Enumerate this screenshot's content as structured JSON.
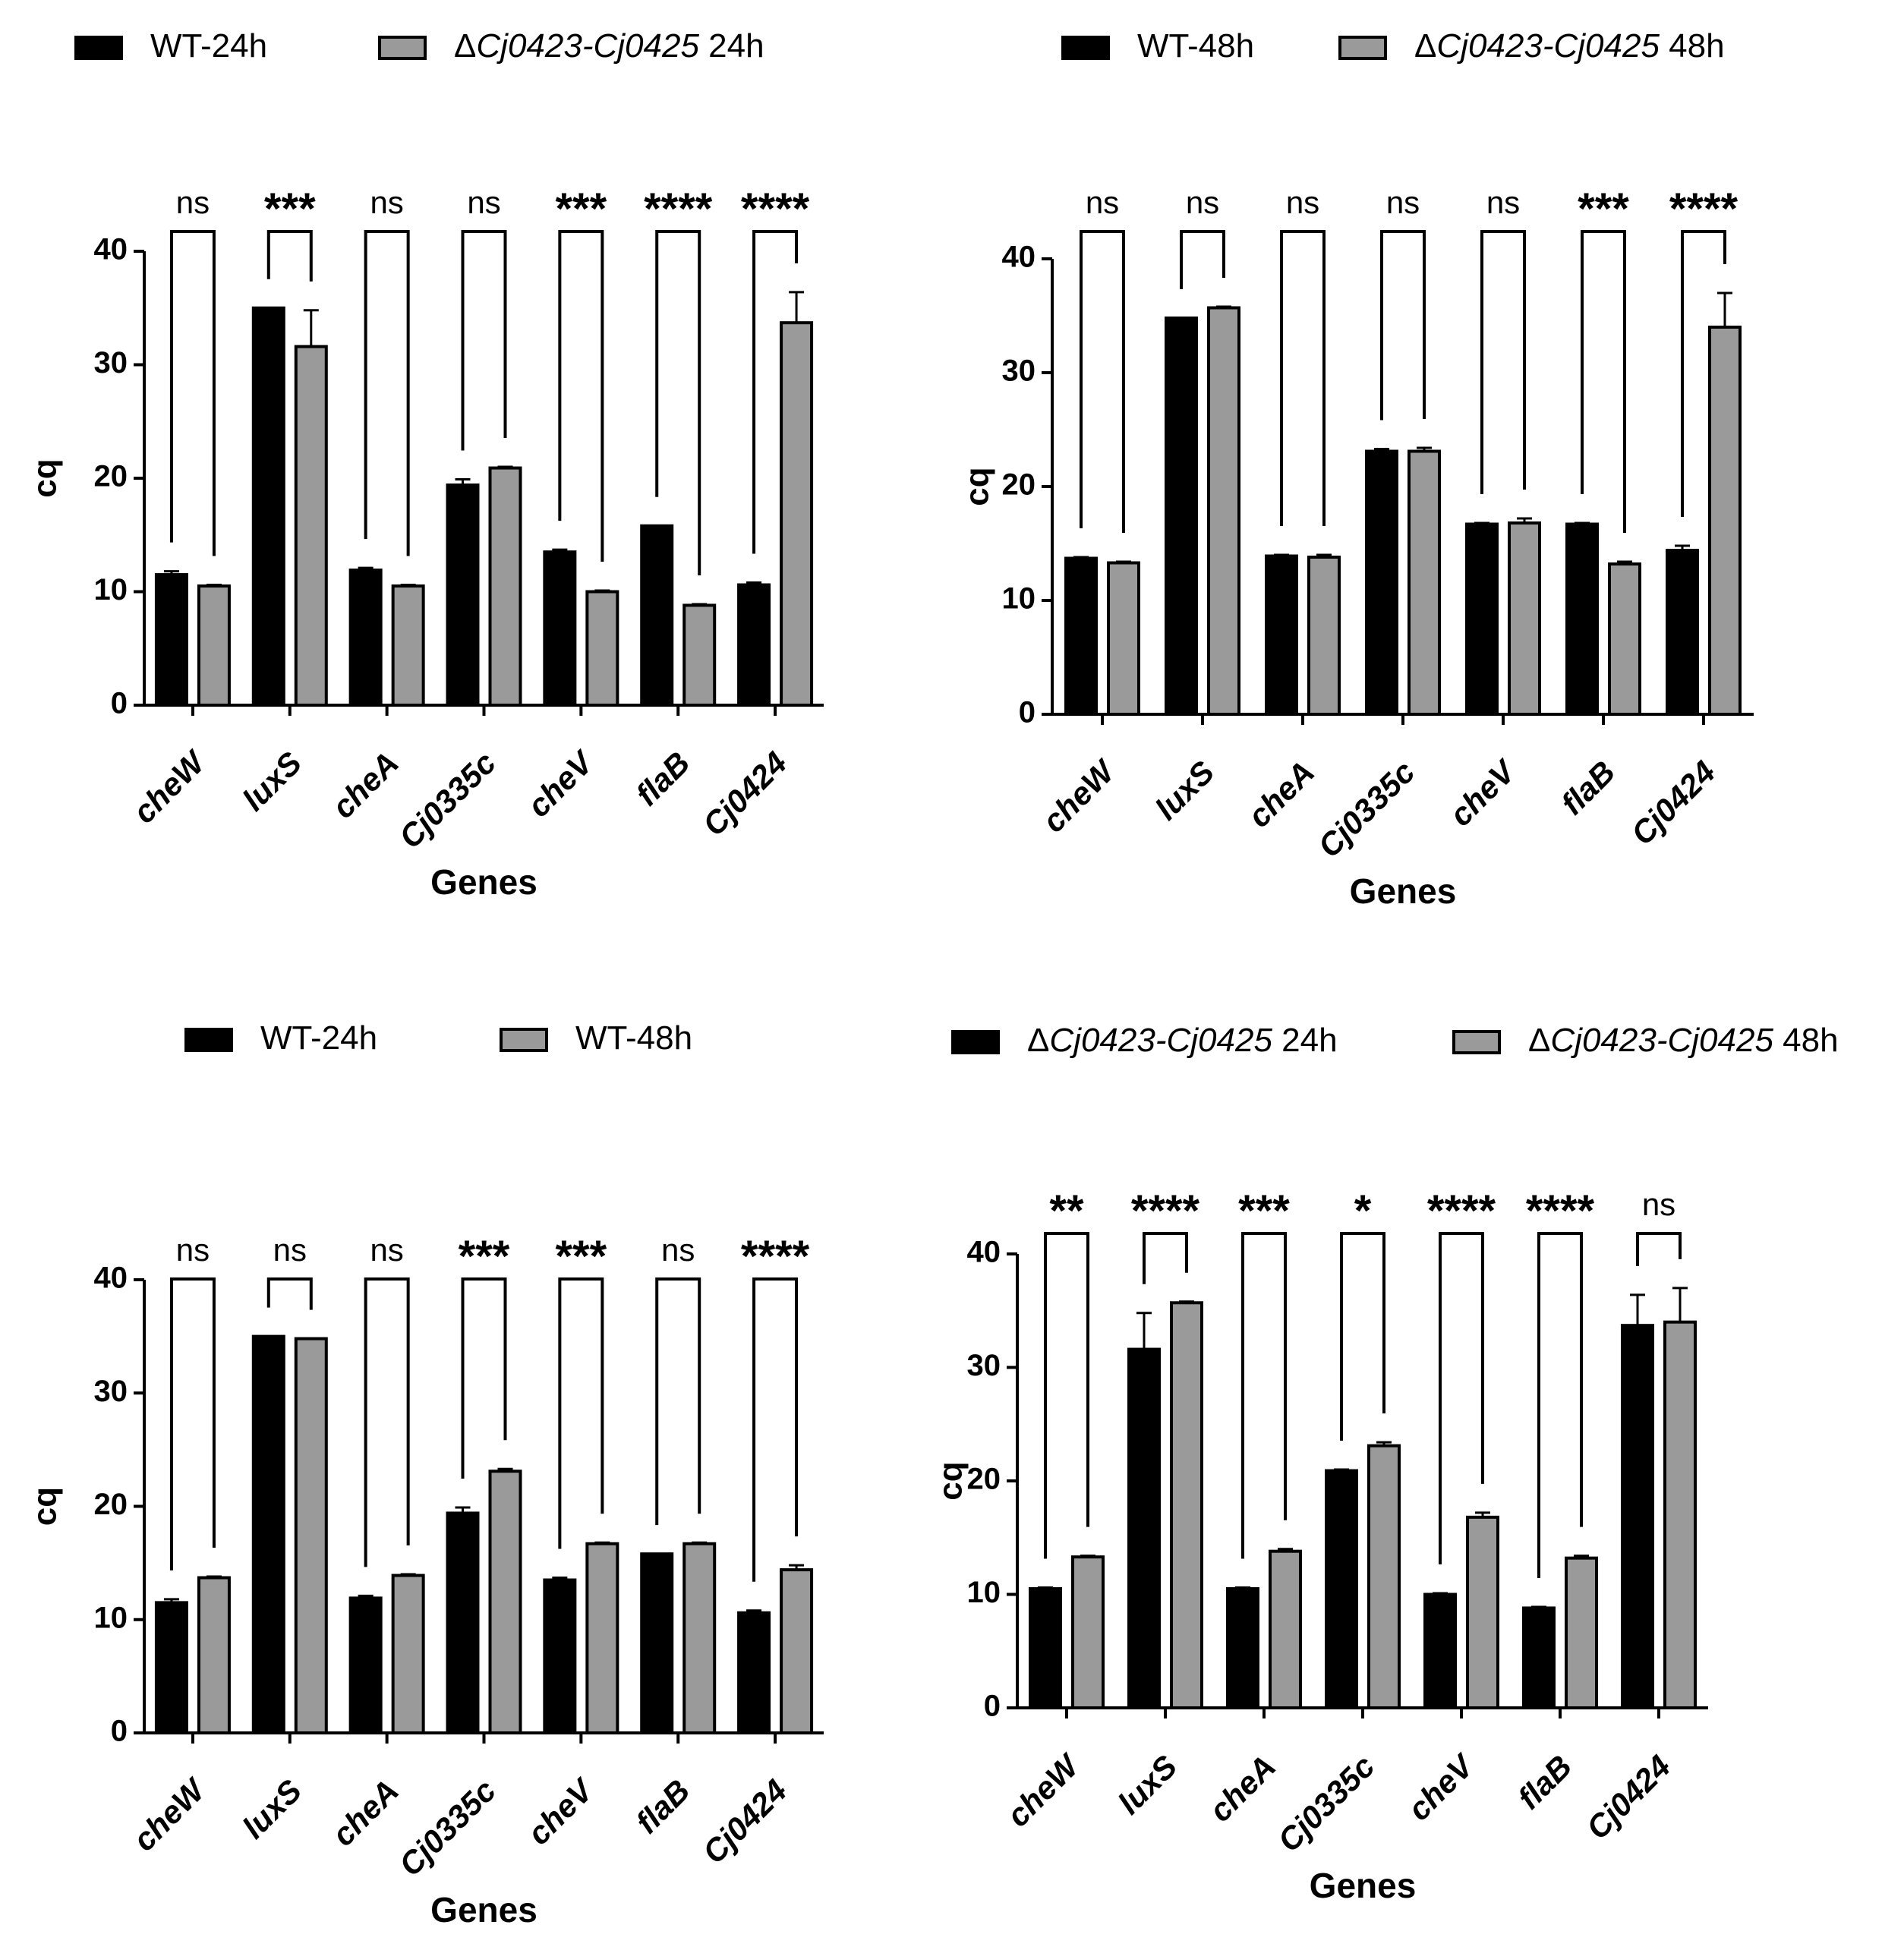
{
  "colors": {
    "wt_fill": "#000000",
    "mutant_fill": "#9a9a9a",
    "stroke": "#000000"
  },
  "chart_data": [
    {
      "type": "bar",
      "panel": "top-left",
      "legend": [
        {
          "name": "WT-24h",
          "parts": [
            {
              "t": "WT-24h",
              "italic": false
            }
          ]
        },
        {
          "name": "ΔCj0423-Cj0425 24h",
          "parts": [
            {
              "t": "Δ",
              "italic": false
            },
            {
              "t": "Cj0423-Cj0425",
              "italic": true
            },
            {
              "t": " 24h",
              "italic": false
            }
          ]
        }
      ],
      "legend_position": "top",
      "categories": [
        "cheW",
        "luxS",
        "cheA",
        "Cj0335c",
        "cheV",
        "flaB",
        "Cj0424"
      ],
      "series": [
        {
          "name": "WT-24h",
          "values": [
            11.5,
            35.0,
            11.9,
            19.4,
            13.5,
            15.8,
            10.6
          ],
          "errors": [
            0.3,
            0.0,
            0.2,
            0.5,
            0.2,
            0.0,
            0.2
          ]
        },
        {
          "name": "ΔCj0423-Cj0425 24h",
          "values": [
            10.5,
            31.6,
            10.5,
            20.9,
            10.0,
            8.8,
            33.7
          ],
          "errors": [
            0.1,
            3.2,
            0.1,
            0.1,
            0.1,
            0.1,
            2.7
          ]
        }
      ],
      "significance": [
        "ns",
        "***",
        "ns",
        "ns",
        "***",
        "****",
        "****"
      ],
      "xlabel": "Genes",
      "ylabel": "cq",
      "ylim": [
        0,
        40
      ],
      "yticks": [
        0,
        10,
        20,
        30,
        40
      ],
      "grid": false
    },
    {
      "type": "bar",
      "panel": "top-right",
      "legend": [
        {
          "name": "WT-48h",
          "parts": [
            {
              "t": "WT-48h",
              "italic": false
            }
          ]
        },
        {
          "name": "ΔCj0423-Cj0425 48h",
          "parts": [
            {
              "t": "Δ",
              "italic": false
            },
            {
              "t": "Cj0423-Cj0425",
              "italic": true
            },
            {
              "t": " 48h",
              "italic": false
            }
          ]
        }
      ],
      "legend_position": "top",
      "categories": [
        "cheW",
        "luxS",
        "cheA",
        "Cj0335c",
        "cheV",
        "flaB",
        "Cj0424"
      ],
      "series": [
        {
          "name": "WT-48h",
          "values": [
            13.7,
            34.8,
            13.9,
            23.1,
            16.7,
            16.7,
            14.4
          ],
          "errors": [
            0.1,
            0.0,
            0.1,
            0.2,
            0.1,
            0.1,
            0.4
          ]
        },
        {
          "name": "ΔCj0423-Cj0425 48h",
          "values": [
            13.3,
            35.7,
            13.8,
            23.1,
            16.8,
            13.2,
            34.0
          ],
          "errors": [
            0.1,
            0.1,
            0.2,
            0.3,
            0.4,
            0.2,
            3.0
          ]
        }
      ],
      "significance": [
        "ns",
        "ns",
        "ns",
        "ns",
        "ns",
        "***",
        "****"
      ],
      "xlabel": "Genes",
      "ylabel": "cq",
      "ylim": [
        0,
        40
      ],
      "yticks": [
        0,
        10,
        20,
        30,
        40
      ],
      "grid": false
    },
    {
      "type": "bar",
      "panel": "bottom-left",
      "legend": [
        {
          "name": "WT-24h",
          "parts": [
            {
              "t": "WT-24h",
              "italic": false
            }
          ]
        },
        {
          "name": "WT-48h",
          "parts": [
            {
              "t": "WT-48h",
              "italic": false
            }
          ]
        }
      ],
      "legend_position": "top",
      "categories": [
        "cheW",
        "luxS",
        "cheA",
        "Cj0335c",
        "cheV",
        "flaB",
        "Cj0424"
      ],
      "series": [
        {
          "name": "WT-24h",
          "values": [
            11.5,
            35.0,
            11.9,
            19.4,
            13.5,
            15.8,
            10.6
          ],
          "errors": [
            0.3,
            0.0,
            0.2,
            0.5,
            0.2,
            0.0,
            0.2
          ]
        },
        {
          "name": "WT-48h",
          "values": [
            13.7,
            34.8,
            13.9,
            23.1,
            16.7,
            16.7,
            14.4
          ],
          "errors": [
            0.1,
            0.0,
            0.1,
            0.2,
            0.1,
            0.1,
            0.4
          ]
        }
      ],
      "significance": [
        "ns",
        "ns",
        "ns",
        "***",
        "***",
        "ns",
        "****"
      ],
      "xlabel": "Genes",
      "ylabel": "cq",
      "ylim": [
        0,
        40
      ],
      "yticks": [
        0,
        10,
        20,
        30,
        40
      ],
      "grid": false
    },
    {
      "type": "bar",
      "panel": "bottom-right",
      "legend": [
        {
          "name": "ΔCj0423-Cj0425 24h",
          "parts": [
            {
              "t": "Δ",
              "italic": false
            },
            {
              "t": "Cj0423-Cj0425",
              "italic": true
            },
            {
              "t": " 24h",
              "italic": false
            }
          ]
        },
        {
          "name": "ΔCj0423-Cj0425 48h",
          "parts": [
            {
              "t": "Δ",
              "italic": false
            },
            {
              "t": "Cj0423-Cj0425",
              "italic": true
            },
            {
              "t": " 48h",
              "italic": false
            }
          ]
        }
      ],
      "legend_position": "top",
      "categories": [
        "cheW",
        "luxS",
        "cheA",
        "Cj0335c",
        "cheV",
        "flaB",
        "Cj0424"
      ],
      "series": [
        {
          "name": "ΔCj0423-Cj0425 24h",
          "values": [
            10.5,
            31.6,
            10.5,
            20.9,
            10.0,
            8.8,
            33.7
          ],
          "errors": [
            0.1,
            3.2,
            0.1,
            0.1,
            0.1,
            0.1,
            2.7
          ]
        },
        {
          "name": "ΔCj0423-Cj0425 48h",
          "values": [
            13.3,
            35.7,
            13.8,
            23.1,
            16.8,
            13.2,
            34.0
          ],
          "errors": [
            0.1,
            0.1,
            0.2,
            0.3,
            0.4,
            0.2,
            3.0
          ]
        }
      ],
      "significance": [
        "**",
        "****",
        "***",
        "*",
        "****",
        "****",
        "ns"
      ],
      "xlabel": "Genes",
      "ylabel": "cq",
      "ylim": [
        0,
        40
      ],
      "yticks": [
        0,
        10,
        20,
        30,
        40
      ],
      "grid": false
    }
  ]
}
